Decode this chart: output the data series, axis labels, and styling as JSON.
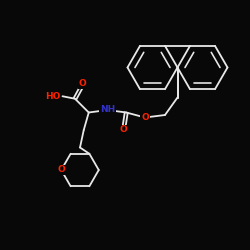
{
  "bg_color": "#080808",
  "bond_color": "#e8e8e8",
  "oxygen_color": "#ff2200",
  "nitrogen_color": "#3333cc",
  "lw": 1.3,
  "fs": 6.0,
  "xlim": [
    0,
    10
  ],
  "ylim": [
    0,
    10
  ],
  "figsize": [
    2.5,
    2.5
  ],
  "dpi": 100
}
